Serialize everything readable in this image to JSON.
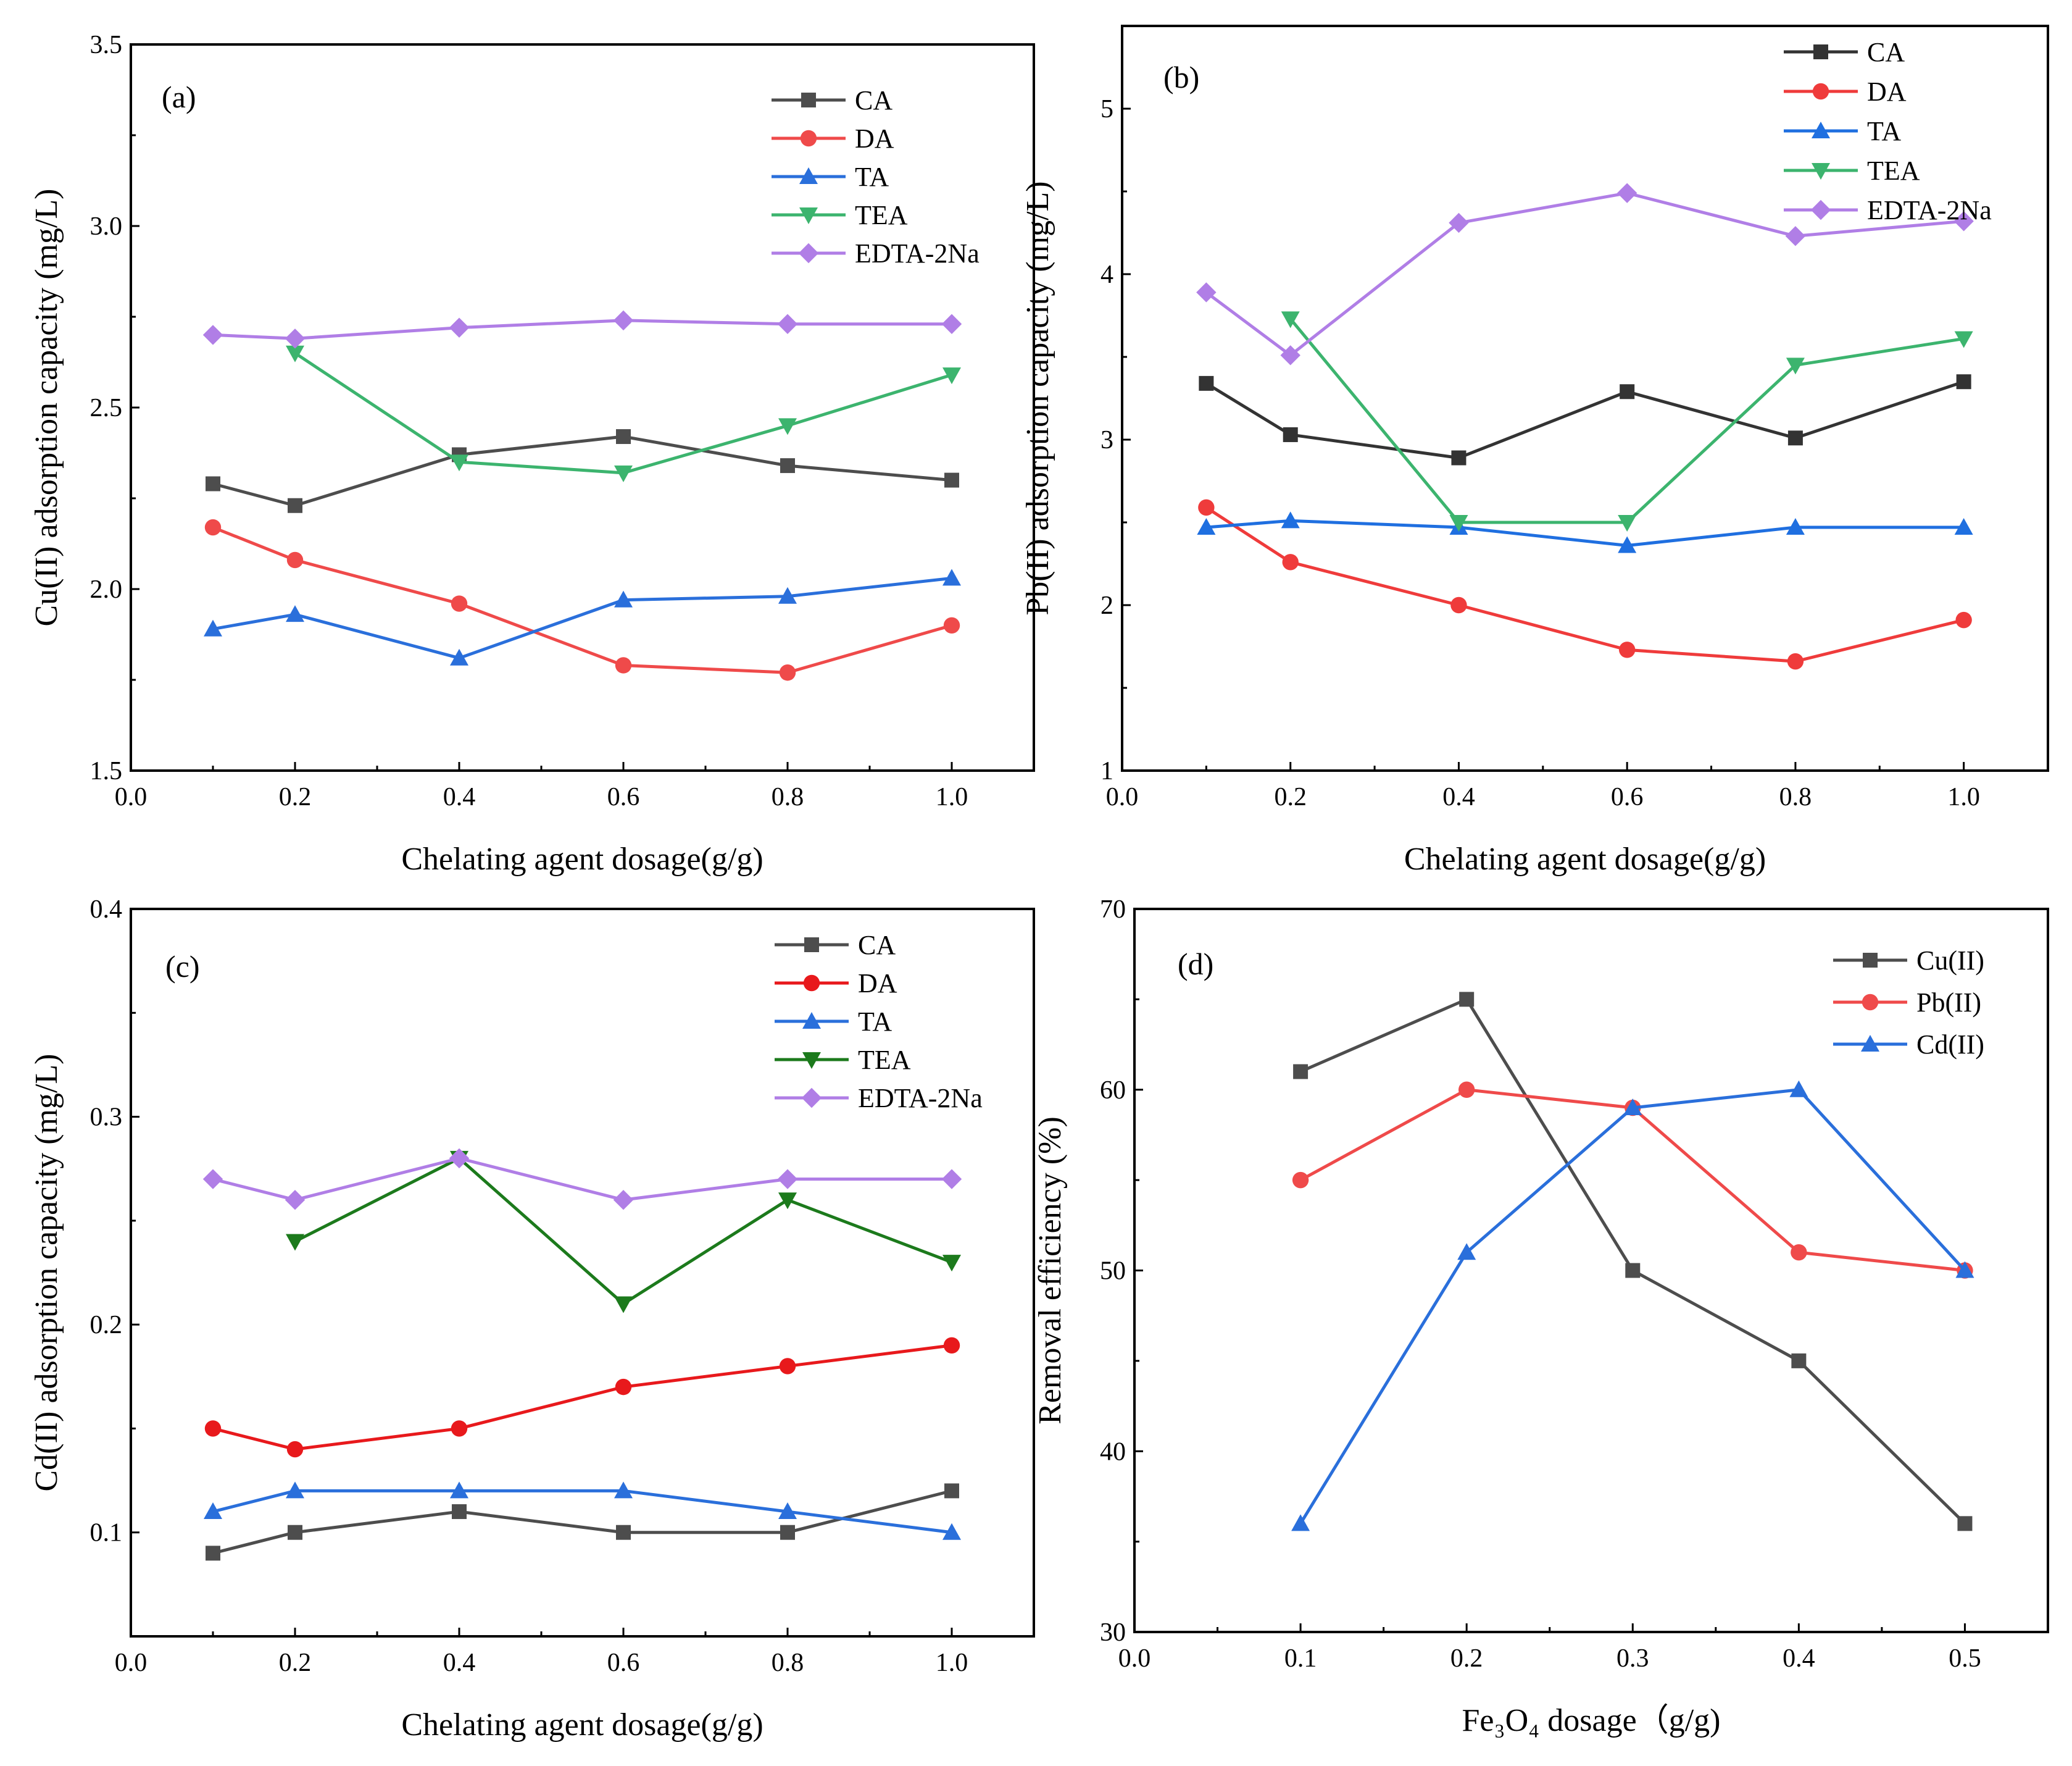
{
  "figure_title": "",
  "chart_data": [
    {
      "panel": "(a)",
      "type": "line",
      "title": "",
      "xlabel": "Chelating agent dosage(g/g)",
      "ylabel": "Cu(II) adsorption capacity (mg/L)",
      "xlim": [
        0.0,
        1.1
      ],
      "ylim": [
        1.5,
        3.5
      ],
      "xticks": [
        0.0,
        0.2,
        0.4,
        0.6,
        0.8,
        1.0
      ],
      "xtick_labels": [
        "0.0",
        "0.2",
        "0.4",
        "0.6",
        "0.8",
        "1.0"
      ],
      "yticks": [
        1.5,
        2.0,
        2.5,
        3.0,
        3.5
      ],
      "ytick_labels": [
        "1.5",
        "2.0",
        "2.5",
        "3.0",
        "3.5"
      ],
      "legend_position": "top-right",
      "series": [
        {
          "name": "CA",
          "color": "#4d4d4d",
          "marker": "square",
          "x": [
            0.1,
            0.2,
            0.4,
            0.6,
            0.8,
            1.0
          ],
          "values": [
            2.29,
            2.23,
            2.37,
            2.42,
            2.34,
            2.3
          ]
        },
        {
          "name": "DA",
          "color": "#ef4a4a",
          "marker": "circle",
          "x": [
            0.1,
            0.2,
            0.4,
            0.6,
            0.8,
            1.0
          ],
          "values": [
            2.17,
            2.08,
            1.96,
            1.79,
            1.77,
            1.9
          ]
        },
        {
          "name": "TA",
          "color": "#2a6fdb",
          "marker": "triangle-up",
          "x": [
            0.1,
            0.2,
            0.4,
            0.6,
            0.8,
            1.0
          ],
          "values": [
            1.89,
            1.93,
            1.81,
            1.97,
            1.98,
            2.03
          ]
        },
        {
          "name": "TEA",
          "color": "#3cb46e",
          "marker": "triangle-down",
          "x": [
            0.2,
            0.4,
            0.6,
            0.8,
            1.0
          ],
          "values": [
            2.65,
            2.35,
            2.32,
            2.45,
            2.59
          ]
        },
        {
          "name": "EDTA-2Na",
          "color": "#b07ee6",
          "marker": "diamond",
          "x": [
            0.1,
            0.2,
            0.4,
            0.6,
            0.8,
            1.0
          ],
          "values": [
            2.7,
            2.69,
            2.72,
            2.74,
            2.73,
            2.73
          ]
        }
      ]
    },
    {
      "panel": "(b)",
      "type": "line",
      "title": "",
      "xlabel": "Chelating agent dosage(g/g)",
      "ylabel": "Pb(II) adsorption capacity (mg/L)",
      "xlim": [
        0.0,
        1.1
      ],
      "ylim": [
        1,
        5.5
      ],
      "xticks": [
        0.0,
        0.2,
        0.4,
        0.6,
        0.8,
        1.0
      ],
      "xtick_labels": [
        "0.0",
        "0.2",
        "0.4",
        "0.6",
        "0.8",
        "1.0"
      ],
      "yticks": [
        1,
        2,
        3,
        4,
        5
      ],
      "ytick_labels": [
        "1",
        "2",
        "3",
        "4",
        "5"
      ],
      "legend_position": "top-right",
      "series": [
        {
          "name": "CA",
          "color": "#333333",
          "marker": "square",
          "x": [
            0.1,
            0.2,
            0.4,
            0.6,
            0.8,
            1.0
          ],
          "values": [
            3.34,
            3.03,
            2.89,
            3.29,
            3.01,
            3.35
          ]
        },
        {
          "name": "DA",
          "color": "#ef3b3b",
          "marker": "circle",
          "x": [
            0.1,
            0.2,
            0.4,
            0.6,
            0.8,
            1.0
          ],
          "values": [
            2.59,
            2.26,
            2.0,
            1.73,
            1.66,
            1.91
          ]
        },
        {
          "name": "TA",
          "color": "#1f6fe0",
          "marker": "triangle-up",
          "x": [
            0.1,
            0.2,
            0.4,
            0.6,
            0.8,
            1.0
          ],
          "values": [
            2.47,
            2.51,
            2.47,
            2.36,
            2.47,
            2.47
          ]
        },
        {
          "name": "TEA",
          "color": "#3cb46e",
          "marker": "triangle-down",
          "x": [
            0.2,
            0.4,
            0.6,
            0.8,
            1.0
          ],
          "values": [
            3.73,
            2.5,
            2.5,
            3.45,
            3.61
          ]
        },
        {
          "name": "EDTA-2Na",
          "color": "#b07ee6",
          "marker": "diamond",
          "x": [
            0.1,
            0.2,
            0.4,
            0.6,
            0.8,
            1.0
          ],
          "values": [
            3.89,
            3.51,
            4.31,
            4.49,
            4.23,
            4.32
          ]
        }
      ]
    },
    {
      "panel": "(c)",
      "type": "line",
      "title": "",
      "xlabel": "Chelating agent dosage(g/g)",
      "ylabel": "Cd(II) adsorption capacity (mg/L)",
      "xlim": [
        0.0,
        1.1
      ],
      "ylim": [
        0.05,
        0.4
      ],
      "xticks": [
        0.0,
        0.2,
        0.4,
        0.6,
        0.8,
        1.0
      ],
      "xtick_labels": [
        "0.0",
        "0.2",
        "0.4",
        "0.6",
        "0.8",
        "1.0"
      ],
      "yticks": [
        0.1,
        0.2,
        0.3,
        0.4
      ],
      "ytick_labels": [
        "0.1",
        "0.2",
        "0.3",
        "0.4"
      ],
      "legend_position": "top-right",
      "series": [
        {
          "name": "CA",
          "color": "#4d4d4d",
          "marker": "square",
          "x": [
            0.1,
            0.2,
            0.4,
            0.6,
            0.8,
            1.0
          ],
          "values": [
            0.09,
            0.1,
            0.11,
            0.1,
            0.1,
            0.12
          ]
        },
        {
          "name": "DA",
          "color": "#e8191c",
          "marker": "circle",
          "x": [
            0.1,
            0.2,
            0.4,
            0.6,
            0.8,
            1.0
          ],
          "values": [
            0.15,
            0.14,
            0.15,
            0.17,
            0.18,
            0.19
          ]
        },
        {
          "name": "TA",
          "color": "#2a6fdb",
          "marker": "triangle-up",
          "x": [
            0.1,
            0.2,
            0.4,
            0.6,
            0.8,
            1.0
          ],
          "values": [
            0.11,
            0.12,
            0.12,
            0.12,
            0.11,
            0.1
          ]
        },
        {
          "name": "TEA",
          "color": "#1c7a1c",
          "marker": "triangle-down",
          "x": [
            0.2,
            0.4,
            0.6,
            0.8,
            1.0
          ],
          "values": [
            0.24,
            0.28,
            0.21,
            0.26,
            0.23
          ]
        },
        {
          "name": "EDTA-2Na",
          "color": "#b07ee6",
          "marker": "diamond",
          "x": [
            0.1,
            0.2,
            0.4,
            0.6,
            0.8,
            1.0
          ],
          "values": [
            0.27,
            0.26,
            0.28,
            0.26,
            0.27,
            0.27
          ]
        }
      ]
    },
    {
      "panel": "(d)",
      "type": "line",
      "title": "",
      "xlabel": "Fe₃O₄ dosage（g/g)",
      "ylabel": "Removal efficiency (%)",
      "xlim": [
        0.0,
        0.55
      ],
      "ylim": [
        30,
        70
      ],
      "xticks": [
        0.0,
        0.1,
        0.2,
        0.3,
        0.4,
        0.5
      ],
      "xtick_labels": [
        "0.0",
        "0.1",
        "0.2",
        "0.3",
        "0.4",
        "0.5"
      ],
      "yticks": [
        30,
        40,
        50,
        60,
        70
      ],
      "ytick_labels": [
        "30",
        "40",
        "50",
        "60",
        "70"
      ],
      "legend_position": "top-right",
      "series": [
        {
          "name": "Cu(II)",
          "color": "#4d4d4d",
          "marker": "square",
          "x": [
            0.1,
            0.2,
            0.3,
            0.4,
            0.5
          ],
          "values": [
            61,
            65,
            50,
            45,
            36
          ]
        },
        {
          "name": "Pb(II)",
          "color": "#ef4a4a",
          "marker": "circle",
          "x": [
            0.1,
            0.2,
            0.3,
            0.4,
            0.5
          ],
          "values": [
            55,
            60,
            59,
            51,
            50
          ]
        },
        {
          "name": "Cd(II)",
          "color": "#2a6fdb",
          "marker": "triangle-up",
          "x": [
            0.1,
            0.2,
            0.3,
            0.4,
            0.5
          ],
          "values": [
            36,
            51,
            59,
            60,
            50
          ]
        }
      ]
    }
  ]
}
